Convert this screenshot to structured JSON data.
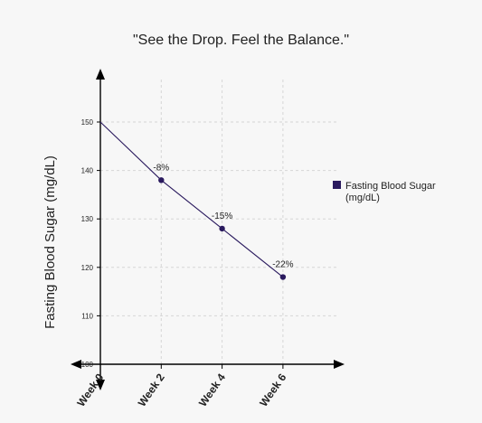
{
  "chart_data": {
    "type": "line",
    "title": "\"See the Drop. Feel the Balance.\"",
    "xlabel": "",
    "ylabel": "Fasting Blood Sugar (mg/dL)",
    "categories": [
      "Week 0",
      "Week 2",
      "Week 4",
      "Week 6"
    ],
    "ylim": [
      100,
      150
    ],
    "yticks": [
      100,
      110,
      120,
      130,
      140,
      150
    ],
    "grid": true,
    "legend_position": "right",
    "series": [
      {
        "name": "Fasting Blood Sugar (mg/dL)",
        "values": [
          150,
          138,
          128,
          118
        ],
        "labels": [
          "",
          "-8%",
          "-15%",
          "-22%"
        ],
        "color": "#2a1a5e"
      }
    ]
  }
}
